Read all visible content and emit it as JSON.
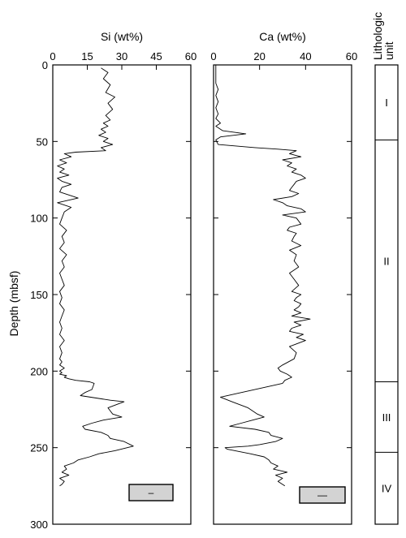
{
  "chart_data": [
    {
      "type": "line",
      "orientation": "vertical-depth",
      "title": "Si (wt%)",
      "xlim": [
        0,
        60
      ],
      "xticks": [
        0,
        15,
        30,
        45,
        60
      ],
      "ylim": [
        0,
        300
      ],
      "yticks": [
        0,
        50,
        100,
        150,
        200,
        250,
        300
      ],
      "ylabel": "Depth (mbsf)",
      "legend": {
        "label": "–",
        "placement": "bottom-right"
      },
      "series": [
        {
          "x": [
            21,
            24,
            22,
            25,
            23,
            27,
            24,
            26,
            23,
            25,
            22,
            24,
            21,
            23,
            20,
            24,
            22,
            26,
            21,
            22,
            23,
            10,
            5,
            8,
            3,
            6,
            2,
            5,
            3,
            7,
            2,
            4,
            8,
            4,
            3,
            11,
            2,
            8,
            5,
            4,
            3,
            6,
            4,
            5,
            3,
            6,
            4,
            5,
            3,
            4,
            5,
            3,
            4,
            3,
            5,
            4,
            3,
            4,
            3,
            5,
            3,
            4,
            3,
            4,
            3,
            5,
            3,
            4,
            3,
            6,
            5,
            7,
            10,
            16,
            18,
            17,
            14,
            12,
            25,
            31,
            24,
            26,
            30,
            22,
            17,
            13,
            14,
            21,
            24,
            25,
            31,
            35,
            27,
            20,
            16,
            11,
            9,
            5,
            6,
            4,
            7,
            3,
            5,
            4,
            3
          ],
          "y": [
            2,
            5,
            9,
            13,
            18,
            21,
            25,
            29,
            33,
            36,
            38,
            40,
            42,
            44,
            46,
            48,
            50,
            52,
            54,
            55,
            56,
            57,
            58,
            60,
            62,
            64,
            66,
            68,
            70,
            72,
            74,
            76,
            78,
            80,
            83,
            87,
            90,
            93,
            96,
            100,
            104,
            108,
            112,
            116,
            120,
            124,
            128,
            132,
            136,
            140,
            144,
            148,
            152,
            156,
            160,
            164,
            168,
            172,
            176,
            180,
            184,
            188,
            192,
            194,
            196,
            198,
            200,
            201,
            202,
            203,
            204,
            205,
            206,
            207,
            208,
            212,
            214,
            216,
            219,
            220,
            224,
            228,
            230,
            232,
            234,
            236,
            238,
            240,
            242,
            244,
            246,
            249,
            252,
            254,
            256,
            258,
            260,
            262,
            264,
            266,
            268,
            270,
            272,
            274,
            275
          ]
        }
      ]
    },
    {
      "type": "line",
      "orientation": "vertical-depth",
      "title": "Ca (wt%)",
      "xlim": [
        0,
        60
      ],
      "xticks": [
        0,
        20,
        40,
        60
      ],
      "ylim": [
        0,
        300
      ],
      "yticks": [
        0,
        50,
        100,
        150,
        200,
        250,
        300
      ],
      "legend": {
        "label": "—",
        "placement": "bottom-right"
      },
      "series": [
        {
          "x": [
            1,
            1,
            1,
            1,
            2,
            1,
            2,
            1,
            2,
            1,
            3,
            1,
            4,
            14,
            3,
            1,
            2,
            18,
            28,
            36,
            33,
            38,
            30,
            34,
            32,
            36,
            34,
            38,
            40,
            36,
            35,
            34,
            33,
            37,
            34,
            26,
            30,
            32,
            38,
            40,
            30,
            36,
            38,
            33,
            32,
            36,
            35,
            34,
            38,
            33,
            36,
            35,
            37,
            33,
            35,
            37,
            34,
            38,
            36,
            35,
            38,
            37,
            35,
            38,
            34,
            42,
            35,
            38,
            34,
            33,
            39,
            36,
            40,
            33,
            36,
            35,
            30,
            28,
            29,
            32,
            34,
            31,
            30,
            3,
            8,
            15,
            19,
            22,
            17,
            12,
            7,
            18,
            24,
            25,
            30,
            27,
            20,
            15,
            5,
            6,
            16,
            22,
            24,
            25,
            28,
            26,
            32,
            27,
            30,
            28,
            31
          ],
          "y": [
            0,
            4,
            8,
            12,
            16,
            20,
            24,
            28,
            32,
            35,
            38,
            40,
            43,
            45,
            47,
            49,
            52,
            54,
            55,
            56,
            58,
            60,
            62,
            64,
            66,
            68,
            70,
            72,
            74,
            76,
            78,
            80,
            82,
            84,
            86,
            88,
            90,
            92,
            94,
            96,
            98,
            100,
            104,
            106,
            108,
            110,
            112,
            115,
            118,
            121,
            124,
            128,
            132,
            136,
            140,
            144,
            148,
            150,
            152,
            154,
            156,
            158,
            160,
            162,
            164,
            166,
            168,
            170,
            172,
            174,
            176,
            178,
            180,
            184,
            188,
            192,
            196,
            198,
            200,
            202,
            204,
            206,
            208,
            217,
            220,
            224,
            228,
            230,
            232,
            234,
            236,
            238,
            240,
            242,
            244,
            246,
            248,
            249,
            250,
            251,
            254,
            256,
            258,
            260,
            262,
            264,
            266,
            268,
            270,
            272,
            275
          ]
        }
      ]
    },
    {
      "type": "table",
      "title": "Lithologic unit",
      "units": [
        {
          "label": "I",
          "top": 0,
          "bottom": 49
        },
        {
          "label": "II",
          "top": 49,
          "bottom": 207
        },
        {
          "label": "III",
          "top": 207,
          "bottom": 253
        },
        {
          "label": "IV",
          "top": 253,
          "bottom": 300
        }
      ]
    }
  ]
}
